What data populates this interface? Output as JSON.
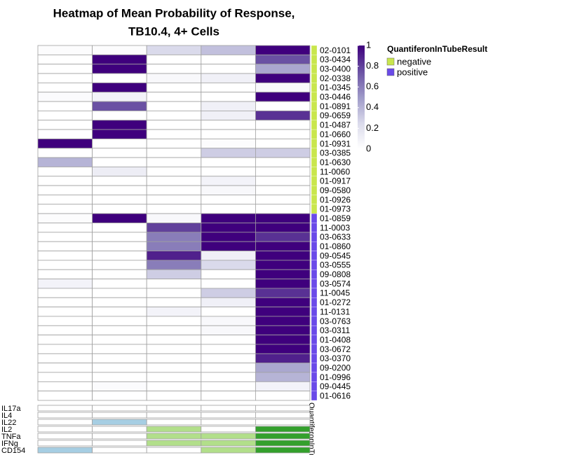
{
  "chart_data": {
    "type": "heatmap",
    "title": [
      "Heatmap of Mean Probability of Response,",
      "TB10.4, 4+ Cells"
    ],
    "rows": [
      "02-0101",
      "03-0434",
      "03-0400",
      "02-0338",
      "01-0345",
      "03-0446",
      "01-0891",
      "09-0659",
      "01-0487",
      "01-0660",
      "01-0931",
      "03-0385",
      "01-0630",
      "11-0060",
      "01-0917",
      "09-0580",
      "01-0926",
      "01-0973",
      "01-0859",
      "11-0003",
      "03-0633",
      "01-0860",
      "09-0545",
      "03-0555",
      "09-0808",
      "03-0574",
      "11-0045",
      "01-0272",
      "11-0131",
      "03-0763",
      "03-0311",
      "01-0408",
      "03-0672",
      "03-0370",
      "09-0200",
      "01-0996",
      "09-0445",
      "01-0616"
    ],
    "row_groups": [
      "negative",
      "negative",
      "negative",
      "negative",
      "negative",
      "negative",
      "negative",
      "negative",
      "negative",
      "negative",
      "negative",
      "negative",
      "negative",
      "negative",
      "negative",
      "negative",
      "negative",
      "negative",
      "positive",
      "positive",
      "positive",
      "positive",
      "positive",
      "positive",
      "positive",
      "positive",
      "positive",
      "positive",
      "positive",
      "positive",
      "positive",
      "positive",
      "positive",
      "positive",
      "positive",
      "positive",
      "positive",
      "positive"
    ],
    "values": [
      [
        0.02,
        0.02,
        0.25,
        0.35,
        1
      ],
      [
        0,
        1,
        0,
        0,
        0.75
      ],
      [
        0,
        1,
        0,
        0,
        0.45
      ],
      [
        0,
        0,
        0.05,
        0.1,
        1
      ],
      [
        0,
        1,
        0,
        0,
        0.05
      ],
      [
        0.03,
        0.08,
        0,
        0,
        1
      ],
      [
        0,
        0.75,
        0,
        0.1,
        0
      ],
      [
        0,
        0,
        0,
        0.1,
        0.85
      ],
      [
        0,
        1,
        0,
        0,
        0
      ],
      [
        0,
        1,
        0,
        0,
        0
      ],
      [
        1,
        0,
        0,
        0.02,
        0
      ],
      [
        0,
        0,
        0,
        0.3,
        0.3
      ],
      [
        0.4,
        0,
        0,
        0,
        0
      ],
      [
        0,
        0.12,
        0,
        0,
        0
      ],
      [
        0,
        0,
        0,
        0.08,
        0
      ],
      [
        0,
        0,
        0,
        0.05,
        0
      ],
      [
        0,
        0,
        0,
        0,
        0
      ],
      [
        0,
        0,
        0,
        0,
        0
      ],
      [
        0.02,
        1,
        0.05,
        1,
        1
      ],
      [
        0,
        0,
        0.8,
        1,
        1
      ],
      [
        0,
        0,
        0.6,
        1,
        0.85
      ],
      [
        0,
        0,
        0.6,
        1,
        1
      ],
      [
        0,
        0,
        0.9,
        0.1,
        1
      ],
      [
        0,
        0,
        0.6,
        0.25,
        1
      ],
      [
        0,
        0,
        0.3,
        0,
        1
      ],
      [
        0.08,
        0,
        0,
        0,
        1
      ],
      [
        0,
        0,
        0,
        0.3,
        0.85
      ],
      [
        0,
        0,
        0,
        0.1,
        1
      ],
      [
        0,
        0,
        0.08,
        0,
        1
      ],
      [
        0,
        0,
        0,
        0.05,
        1
      ],
      [
        0,
        0,
        0,
        0.05,
        1
      ],
      [
        0,
        0,
        0,
        0,
        1
      ],
      [
        0,
        0,
        0,
        0,
        1
      ],
      [
        0,
        0,
        0,
        0,
        0.9
      ],
      [
        0,
        0,
        0,
        0,
        0.45
      ],
      [
        0,
        0,
        0,
        0,
        0.4
      ],
      [
        0,
        0.03,
        0,
        0,
        0.08
      ],
      [
        0,
        0,
        0,
        0,
        0
      ]
    ],
    "colorscale": [
      "#ffffff",
      "#dadaeb",
      "#9e9ac8",
      "#6a51a3",
      "#3f007d"
    ],
    "zlim": [
      0,
      1
    ],
    "zticks": [
      0,
      0.2,
      0.4,
      0.6,
      0.8,
      1
    ],
    "annotation": {
      "title": "QuantiferonInTubeResult",
      "label": "QuantiferonInTu",
      "levels": [
        {
          "name": "negative",
          "color": "#c9e64d"
        },
        {
          "name": "positive",
          "color": "#6a4ae8"
        }
      ]
    },
    "subsets": {
      "markers": [
        "IL17a",
        "IL4",
        "IL22",
        "IL2",
        "TNFa",
        "IFNg",
        "CD154"
      ],
      "colors": [
        "#a6cee3",
        "#a6cee3",
        "#b2df8a",
        "#b2df8a",
        "#33a02c"
      ],
      "matrix": [
        [
          0,
          0,
          0,
          0,
          0
        ],
        [
          0,
          0,
          0,
          0,
          0
        ],
        [
          0,
          1,
          0,
          0,
          0
        ],
        [
          0,
          0,
          1,
          0,
          1
        ],
        [
          0,
          0,
          1,
          1,
          1
        ],
        [
          0,
          0,
          1,
          1,
          1
        ],
        [
          1,
          0,
          0,
          1,
          1
        ]
      ]
    }
  }
}
